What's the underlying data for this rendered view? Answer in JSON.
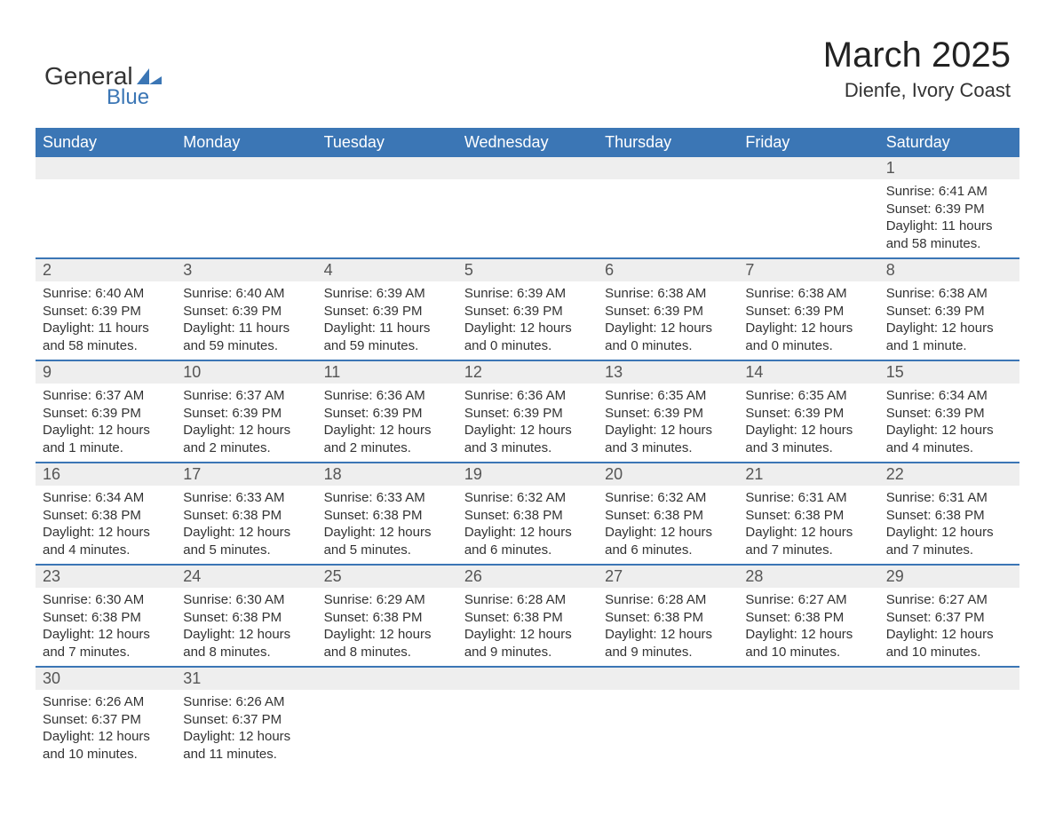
{
  "logo": {
    "text_general": "General",
    "text_blue": "Blue",
    "shape_color": "#3b76b5",
    "text_color_general": "#333333",
    "text_color_blue": "#3b76b5"
  },
  "title": {
    "month": "March 2025",
    "location": "Dienfe, Ivory Coast",
    "month_fontsize": 40,
    "location_fontsize": 22,
    "text_color": "#222222"
  },
  "table": {
    "header_bg": "#3b76b5",
    "header_text_color": "#ffffff",
    "header_fontsize": 18,
    "daynum_bg": "#eeeeee",
    "daynum_text_color": "#555555",
    "daynum_fontsize": 18,
    "row_separator_color": "#3b76b5",
    "body_text_color": "#333333",
    "body_fontsize": 15,
    "columns": [
      "Sunday",
      "Monday",
      "Tuesday",
      "Wednesday",
      "Thursday",
      "Friday",
      "Saturday"
    ]
  },
  "weeks": [
    [
      null,
      null,
      null,
      null,
      null,
      null,
      {
        "n": "1",
        "sunrise": "Sunrise: 6:41 AM",
        "sunset": "Sunset: 6:39 PM",
        "dl1": "Daylight: 11 hours",
        "dl2": "and 58 minutes."
      }
    ],
    [
      {
        "n": "2",
        "sunrise": "Sunrise: 6:40 AM",
        "sunset": "Sunset: 6:39 PM",
        "dl1": "Daylight: 11 hours",
        "dl2": "and 58 minutes."
      },
      {
        "n": "3",
        "sunrise": "Sunrise: 6:40 AM",
        "sunset": "Sunset: 6:39 PM",
        "dl1": "Daylight: 11 hours",
        "dl2": "and 59 minutes."
      },
      {
        "n": "4",
        "sunrise": "Sunrise: 6:39 AM",
        "sunset": "Sunset: 6:39 PM",
        "dl1": "Daylight: 11 hours",
        "dl2": "and 59 minutes."
      },
      {
        "n": "5",
        "sunrise": "Sunrise: 6:39 AM",
        "sunset": "Sunset: 6:39 PM",
        "dl1": "Daylight: 12 hours",
        "dl2": "and 0 minutes."
      },
      {
        "n": "6",
        "sunrise": "Sunrise: 6:38 AM",
        "sunset": "Sunset: 6:39 PM",
        "dl1": "Daylight: 12 hours",
        "dl2": "and 0 minutes."
      },
      {
        "n": "7",
        "sunrise": "Sunrise: 6:38 AM",
        "sunset": "Sunset: 6:39 PM",
        "dl1": "Daylight: 12 hours",
        "dl2": "and 0 minutes."
      },
      {
        "n": "8",
        "sunrise": "Sunrise: 6:38 AM",
        "sunset": "Sunset: 6:39 PM",
        "dl1": "Daylight: 12 hours",
        "dl2": "and 1 minute."
      }
    ],
    [
      {
        "n": "9",
        "sunrise": "Sunrise: 6:37 AM",
        "sunset": "Sunset: 6:39 PM",
        "dl1": "Daylight: 12 hours",
        "dl2": "and 1 minute."
      },
      {
        "n": "10",
        "sunrise": "Sunrise: 6:37 AM",
        "sunset": "Sunset: 6:39 PM",
        "dl1": "Daylight: 12 hours",
        "dl2": "and 2 minutes."
      },
      {
        "n": "11",
        "sunrise": "Sunrise: 6:36 AM",
        "sunset": "Sunset: 6:39 PM",
        "dl1": "Daylight: 12 hours",
        "dl2": "and 2 minutes."
      },
      {
        "n": "12",
        "sunrise": "Sunrise: 6:36 AM",
        "sunset": "Sunset: 6:39 PM",
        "dl1": "Daylight: 12 hours",
        "dl2": "and 3 minutes."
      },
      {
        "n": "13",
        "sunrise": "Sunrise: 6:35 AM",
        "sunset": "Sunset: 6:39 PM",
        "dl1": "Daylight: 12 hours",
        "dl2": "and 3 minutes."
      },
      {
        "n": "14",
        "sunrise": "Sunrise: 6:35 AM",
        "sunset": "Sunset: 6:39 PM",
        "dl1": "Daylight: 12 hours",
        "dl2": "and 3 minutes."
      },
      {
        "n": "15",
        "sunrise": "Sunrise: 6:34 AM",
        "sunset": "Sunset: 6:39 PM",
        "dl1": "Daylight: 12 hours",
        "dl2": "and 4 minutes."
      }
    ],
    [
      {
        "n": "16",
        "sunrise": "Sunrise: 6:34 AM",
        "sunset": "Sunset: 6:38 PM",
        "dl1": "Daylight: 12 hours",
        "dl2": "and 4 minutes."
      },
      {
        "n": "17",
        "sunrise": "Sunrise: 6:33 AM",
        "sunset": "Sunset: 6:38 PM",
        "dl1": "Daylight: 12 hours",
        "dl2": "and 5 minutes."
      },
      {
        "n": "18",
        "sunrise": "Sunrise: 6:33 AM",
        "sunset": "Sunset: 6:38 PM",
        "dl1": "Daylight: 12 hours",
        "dl2": "and 5 minutes."
      },
      {
        "n": "19",
        "sunrise": "Sunrise: 6:32 AM",
        "sunset": "Sunset: 6:38 PM",
        "dl1": "Daylight: 12 hours",
        "dl2": "and 6 minutes."
      },
      {
        "n": "20",
        "sunrise": "Sunrise: 6:32 AM",
        "sunset": "Sunset: 6:38 PM",
        "dl1": "Daylight: 12 hours",
        "dl2": "and 6 minutes."
      },
      {
        "n": "21",
        "sunrise": "Sunrise: 6:31 AM",
        "sunset": "Sunset: 6:38 PM",
        "dl1": "Daylight: 12 hours",
        "dl2": "and 7 minutes."
      },
      {
        "n": "22",
        "sunrise": "Sunrise: 6:31 AM",
        "sunset": "Sunset: 6:38 PM",
        "dl1": "Daylight: 12 hours",
        "dl2": "and 7 minutes."
      }
    ],
    [
      {
        "n": "23",
        "sunrise": "Sunrise: 6:30 AM",
        "sunset": "Sunset: 6:38 PM",
        "dl1": "Daylight: 12 hours",
        "dl2": "and 7 minutes."
      },
      {
        "n": "24",
        "sunrise": "Sunrise: 6:30 AM",
        "sunset": "Sunset: 6:38 PM",
        "dl1": "Daylight: 12 hours",
        "dl2": "and 8 minutes."
      },
      {
        "n": "25",
        "sunrise": "Sunrise: 6:29 AM",
        "sunset": "Sunset: 6:38 PM",
        "dl1": "Daylight: 12 hours",
        "dl2": "and 8 minutes."
      },
      {
        "n": "26",
        "sunrise": "Sunrise: 6:28 AM",
        "sunset": "Sunset: 6:38 PM",
        "dl1": "Daylight: 12 hours",
        "dl2": "and 9 minutes."
      },
      {
        "n": "27",
        "sunrise": "Sunrise: 6:28 AM",
        "sunset": "Sunset: 6:38 PM",
        "dl1": "Daylight: 12 hours",
        "dl2": "and 9 minutes."
      },
      {
        "n": "28",
        "sunrise": "Sunrise: 6:27 AM",
        "sunset": "Sunset: 6:38 PM",
        "dl1": "Daylight: 12 hours",
        "dl2": "and 10 minutes."
      },
      {
        "n": "29",
        "sunrise": "Sunrise: 6:27 AM",
        "sunset": "Sunset: 6:37 PM",
        "dl1": "Daylight: 12 hours",
        "dl2": "and 10 minutes."
      }
    ],
    [
      {
        "n": "30",
        "sunrise": "Sunrise: 6:26 AM",
        "sunset": "Sunset: 6:37 PM",
        "dl1": "Daylight: 12 hours",
        "dl2": "and 10 minutes."
      },
      {
        "n": "31",
        "sunrise": "Sunrise: 6:26 AM",
        "sunset": "Sunset: 6:37 PM",
        "dl1": "Daylight: 12 hours",
        "dl2": "and 11 minutes."
      },
      null,
      null,
      null,
      null,
      null
    ]
  ]
}
